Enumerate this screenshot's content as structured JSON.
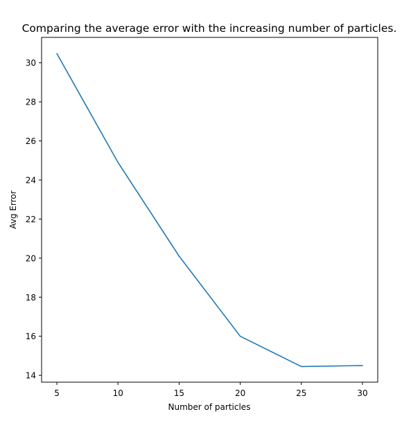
{
  "chart_data": {
    "type": "line",
    "title": "Comparing the average error with the increasing number of particles.",
    "xlabel": "Number of particles",
    "ylabel": "Avg Error",
    "x": [
      5,
      10,
      15,
      20,
      25,
      30
    ],
    "series": [
      {
        "values": [
          30.47,
          24.9,
          20.1,
          16.0,
          14.45,
          14.5
        ],
        "color": "#1f77b4"
      }
    ],
    "xticks": [
      5,
      10,
      15,
      20,
      25,
      30
    ],
    "xtick_labels": [
      "5",
      "10",
      "15",
      "20",
      "25",
      "30"
    ],
    "yticks": [
      14,
      16,
      18,
      20,
      22,
      24,
      26,
      28,
      30
    ],
    "ytick_labels": [
      "14",
      "16",
      "18",
      "20",
      "22",
      "24",
      26,
      "28",
      "30"
    ],
    "xlim": [
      3.75,
      31.25
    ],
    "ylim": [
      13.65,
      31.3
    ],
    "grid": false,
    "legend": "none"
  }
}
